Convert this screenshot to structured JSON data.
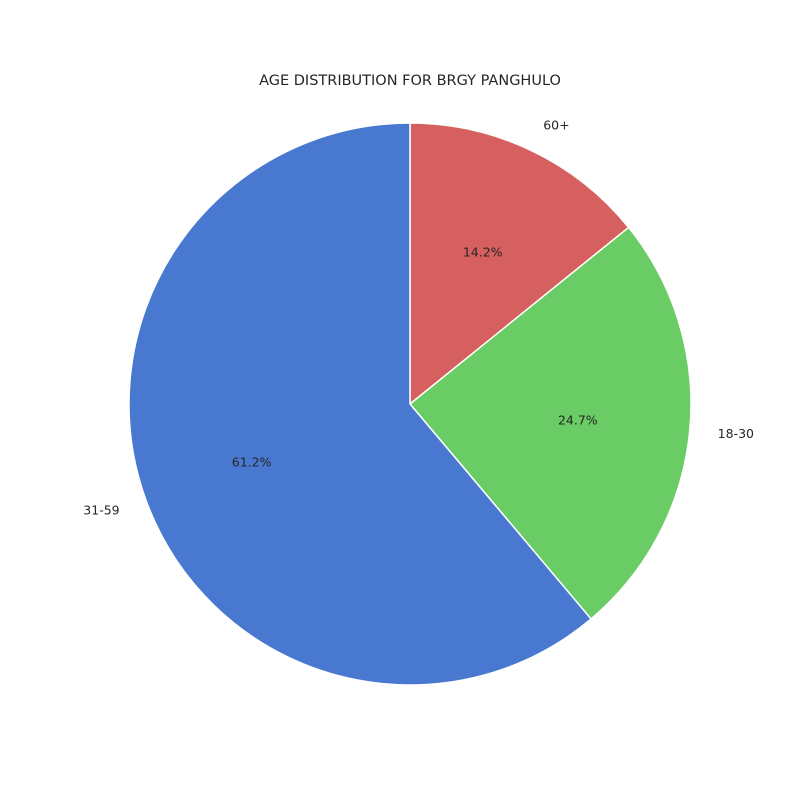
{
  "chart_data": {
    "type": "pie",
    "title": "AGE DISTRIBUTION FOR BRGY PANGHULO",
    "categories": [
      "60+",
      "18-30",
      "31-59"
    ],
    "values": [
      14.2,
      24.7,
      61.2
    ],
    "value_labels": [
      "14.2%",
      "24.7%",
      "61.2%"
    ],
    "colors": [
      "#d65f5f",
      "#6acc64",
      "#4878d0"
    ],
    "start_angle_deg": 90,
    "direction": "clockwise",
    "edge_color": "#ffffff",
    "legend": "none"
  }
}
